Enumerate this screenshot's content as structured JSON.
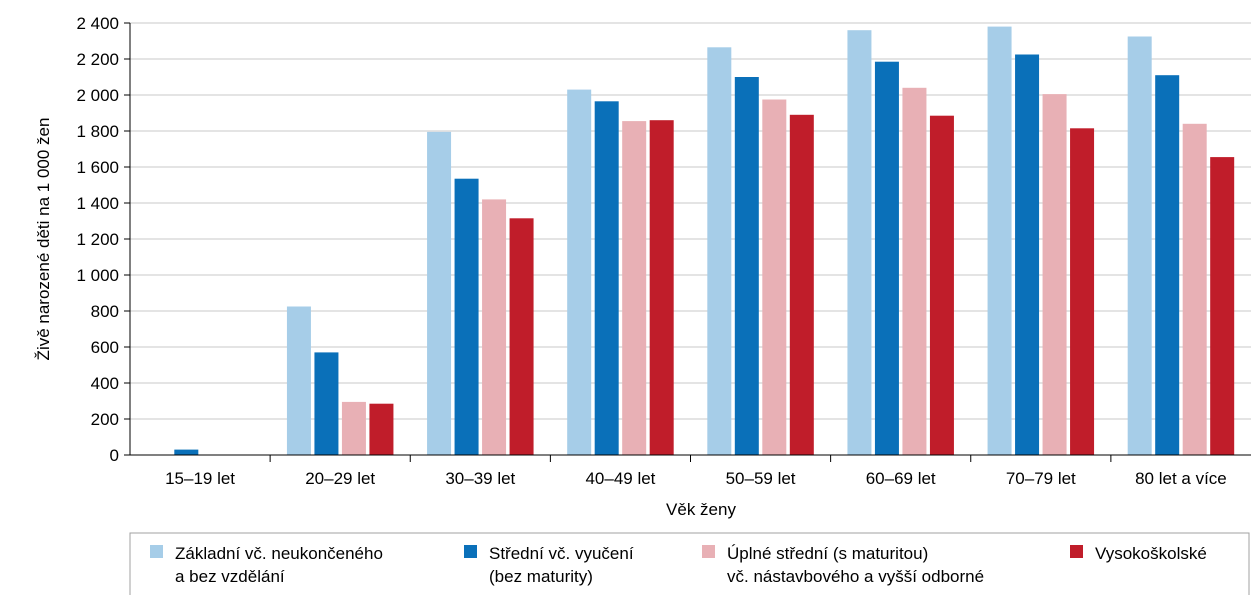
{
  "chart_data": {
    "type": "bar",
    "title": "",
    "xlabel": "Věk ženy",
    "ylabel": "Živě narozené děti na 1 000 žen",
    "ylim": [
      0,
      2400
    ],
    "yticks": [
      0,
      200,
      400,
      600,
      800,
      1000,
      1200,
      1400,
      1600,
      1800,
      2000,
      2200,
      2400
    ],
    "ytick_labels": [
      "0",
      "200",
      "400",
      "600",
      "800",
      "1 000",
      "1 200",
      "1 400",
      "1 600",
      "1 800",
      "2 000",
      "2 200",
      "2 400"
    ],
    "grid": "horizontal",
    "legend_position": "bottom",
    "categories": [
      "15–19 let",
      "20–29 let",
      "30–39 let",
      "40–49 let",
      "50–59 let",
      "60–69 let",
      "70–79 let",
      "80 let a více"
    ],
    "series": [
      {
        "name": "Základní vč. neukončeného a bez vzdělání",
        "legend_lines": [
          "Základní vč. neukončeného",
          "a bez vzdělání"
        ],
        "color": "#a6cde8",
        "values": [
          0,
          825,
          1795,
          2030,
          2265,
          2360,
          2380,
          2325
        ]
      },
      {
        "name": "Střední vč. vyučení (bez maturity)",
        "legend_lines": [
          "Střední vč. vyučení",
          "(bez maturity)"
        ],
        "color": "#0a70b9",
        "values": [
          30,
          570,
          1535,
          1965,
          2100,
          2185,
          2225,
          2110
        ]
      },
      {
        "name": "Úplné střední (s maturitou) vč. nástavbového a vyšší odborné",
        "legend_lines": [
          "Úplné střední (s maturitou)",
          "vč. nástavbového a vyšší odborné"
        ],
        "color": "#e8b0b5",
        "values": [
          0,
          295,
          1420,
          1855,
          1975,
          2040,
          2005,
          1840
        ]
      },
      {
        "name": "Vysokoškolské",
        "legend_lines": [
          "Vysokoškolské"
        ],
        "color": "#c01d2a",
        "values": [
          0,
          285,
          1315,
          1860,
          1890,
          1885,
          1815,
          1655
        ]
      }
    ]
  },
  "colors": {
    "grid": "#c8c8c8",
    "axis": "#000000",
    "legend_border": "#a0a0a0"
  }
}
